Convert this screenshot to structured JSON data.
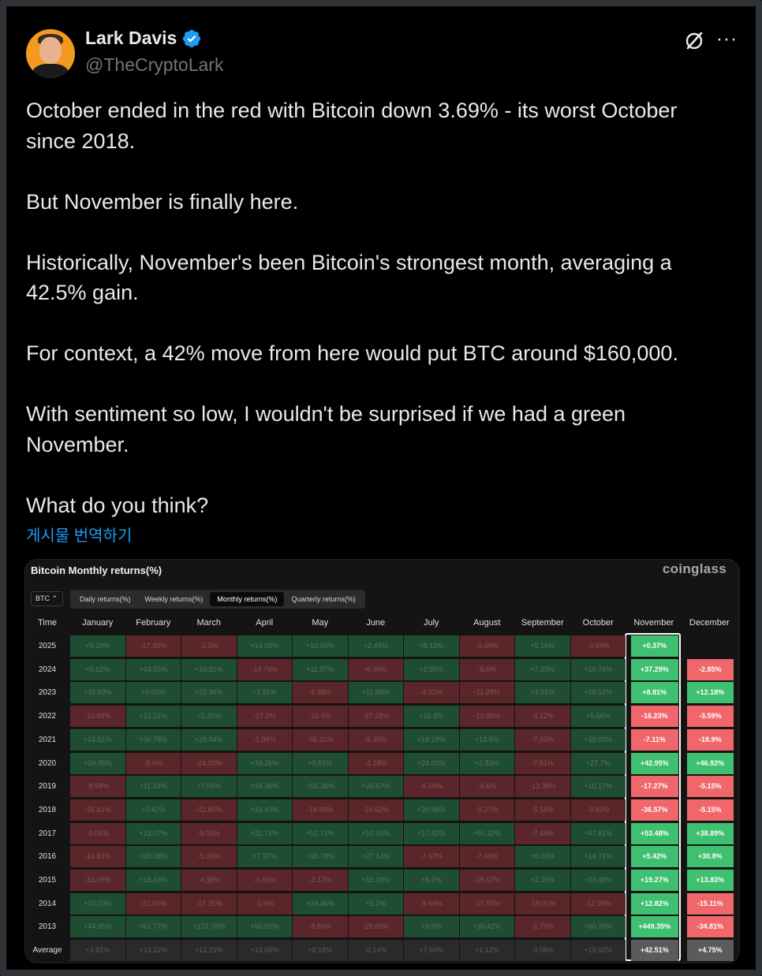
{
  "author": {
    "name": "Lark Davis",
    "handle": "@TheCryptoLark",
    "verified_icon": "verified-badge-icon",
    "accent_color": "#1d9bf0"
  },
  "tweet_text": "October ended in the red with Bitcoin down 3.69% - its worst October since 2018.\n\nBut November is finally here.\n\nHistorically, November's been Bitcoin's strongest month, averaging a 42.5% gain.\n\nFor context, a 42% move from here would put BTC around $160,000.\n\nWith sentiment so low, I wouldn't be surprised if we had a green November.\n\nWhat do you think?",
  "translate_link": "게시물 번역하기",
  "card": {
    "title": "Bitcoin Monthly returns(%)",
    "brand": "coinglass",
    "asset_select": "BTC",
    "tabs": [
      "Daily returns(%)",
      "Weekly returns(%)",
      "Monthly returns(%)",
      "Quarterly returns(%)"
    ],
    "active_tab": 2,
    "corner_label": "Time",
    "highlighted_columns": [
      "November",
      "December"
    ],
    "positive_color": "#3fbf70",
    "negative_color": "#f0676b"
  },
  "chart_data": {
    "type": "heatmap",
    "title": "Bitcoin Monthly returns(%)",
    "columns": [
      "January",
      "February",
      "March",
      "April",
      "May",
      "June",
      "July",
      "August",
      "September",
      "October",
      "November",
      "December"
    ],
    "rows": [
      {
        "label": "2025",
        "values": [
          "+9.29%",
          "-17.39%",
          "-2.3%",
          "+14.08%",
          "+10.99%",
          "+2.49%",
          "+8.13%",
          "-6.49%",
          "+5.16%",
          "-3.69%",
          "+0.37%",
          ""
        ]
      },
      {
        "label": "2024",
        "values": [
          "+0.62%",
          "+43.55%",
          "+16.81%",
          "-14.76%",
          "+11.07%",
          "-6.96%",
          "+2.95%",
          "-8.6%",
          "+7.29%",
          "+10.76%",
          "+37.29%",
          "-2.85%"
        ]
      },
      {
        "label": "2023",
        "values": [
          "+39.63%",
          "+0.03%",
          "+22.96%",
          "+2.81%",
          "-6.98%",
          "+11.98%",
          "-4.02%",
          "-11.29%",
          "+3.91%",
          "+28.52%",
          "+8.81%",
          "+12.18%"
        ]
      },
      {
        "label": "2022",
        "values": [
          "-16.68%",
          "+12.21%",
          "+5.39%",
          "-17.3%",
          "-15.6%",
          "-37.28%",
          "+16.8%",
          "-13.88%",
          "-3.12%",
          "+5.56%",
          "-16.23%",
          "-3.59%"
        ]
      },
      {
        "label": "2021",
        "values": [
          "+14.51%",
          "+36.78%",
          "+29.84%",
          "-1.98%",
          "-35.31%",
          "-5.95%",
          "+18.19%",
          "+13.8%",
          "-7.03%",
          "+39.93%",
          "-7.11%",
          "-18.9%"
        ]
      },
      {
        "label": "2020",
        "values": [
          "+29.95%",
          "-8.6%",
          "-24.92%",
          "+34.26%",
          "+9.51%",
          "-3.18%",
          "+24.03%",
          "+2.83%",
          "-7.51%",
          "+27.7%",
          "+42.95%",
          "+46.92%"
        ]
      },
      {
        "label": "2019",
        "values": [
          "-8.58%",
          "+11.14%",
          "+7.05%",
          "+34.36%",
          "+52.38%",
          "+26.67%",
          "-6.59%",
          "-4.6%",
          "-13.38%",
          "+10.17%",
          "-17.27%",
          "-5.15%"
        ]
      },
      {
        "label": "2018",
        "values": [
          "-25.41%",
          "+0.47%",
          "-32.85%",
          "+33.43%",
          "-18.99%",
          "-14.62%",
          "+20.96%",
          "-9.27%",
          "-5.58%",
          "-3.83%",
          "-36.57%",
          "-5.15%"
        ]
      },
      {
        "label": "2017",
        "values": [
          "-0.04%",
          "+23.07%",
          "-9.05%",
          "+32.71%",
          "+52.71%",
          "+10.45%",
          "+17.92%",
          "+65.32%",
          "-7.44%",
          "+47.81%",
          "+53.48%",
          "+38.89%"
        ]
      },
      {
        "label": "2016",
        "values": [
          "-14.83%",
          "+20.08%",
          "-5.35%",
          "+7.27%",
          "+18.78%",
          "+27.14%",
          "-7.67%",
          "-7.49%",
          "+6.04%",
          "+14.71%",
          "+5.42%",
          "+30.8%"
        ]
      },
      {
        "label": "2015",
        "values": [
          "-33.05%",
          "+18.43%",
          "-4.38%",
          "-3.46%",
          "-3.17%",
          "+15.19%",
          "+8.2%",
          "-18.67%",
          "+2.35%",
          "+33.49%",
          "+19.27%",
          "+13.83%"
        ]
      },
      {
        "label": "2014",
        "values": [
          "+10.03%",
          "-31.03%",
          "-17.25%",
          "-1.6%",
          "+39.46%",
          "+2.2%",
          "-9.69%",
          "-17.55%",
          "-19.01%",
          "-12.95%",
          "+12.82%",
          "-15.11%"
        ]
      },
      {
        "label": "2013",
        "values": [
          "+44.05%",
          "+61.77%",
          "+172.76%",
          "+50.01%",
          "-8.56%",
          "-29.89%",
          "+9.6%",
          "+30.42%",
          "-1.76%",
          "+60.79%",
          "+449.35%",
          "-34.81%"
        ]
      },
      {
        "label": "Average",
        "values": [
          "+3.81%",
          "+13.12%",
          "+12.21%",
          "+13.06%",
          "+8.18%",
          "-0.14%",
          "+7.60%",
          "+1.12%",
          "-3.08%",
          "+19.92%",
          "+42.51%",
          "+4.75%"
        ]
      }
    ]
  }
}
